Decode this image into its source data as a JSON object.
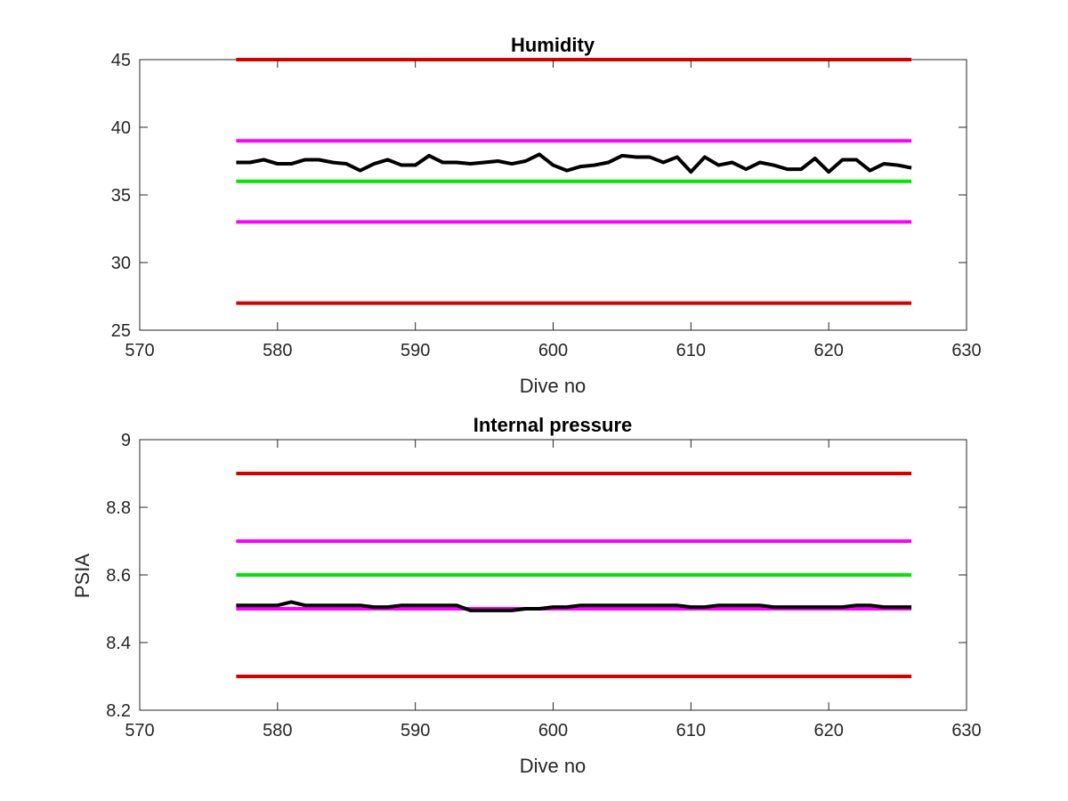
{
  "chart_data": [
    {
      "type": "line",
      "title": "Humidity",
      "xlabel": "Dive no",
      "ylabel": "",
      "xlim": [
        570,
        630
      ],
      "ylim": [
        25,
        45
      ],
      "xticks": [
        570,
        580,
        590,
        600,
        610,
        620,
        630
      ],
      "yticks": [
        25,
        30,
        35,
        40,
        45
      ],
      "grid": false,
      "series": [
        {
          "color": "#d40000",
          "x": [
            577,
            626
          ],
          "y": [
            45,
            45
          ]
        },
        {
          "color": "#ff00ff",
          "x": [
            577,
            626
          ],
          "y": [
            39,
            39
          ]
        },
        {
          "color": "#00e600",
          "x": [
            577,
            626
          ],
          "y": [
            36,
            36
          ]
        },
        {
          "color": "#ff00ff",
          "x": [
            577,
            626
          ],
          "y": [
            33,
            33
          ]
        },
        {
          "color": "#d40000",
          "x": [
            577,
            626
          ],
          "y": [
            27,
            27
          ]
        },
        {
          "color": "#000000",
          "x": [
            577,
            578,
            579,
            580,
            581,
            582,
            583,
            584,
            585,
            586,
            587,
            588,
            589,
            590,
            591,
            592,
            593,
            594,
            595,
            596,
            597,
            598,
            599,
            600,
            601,
            602,
            603,
            604,
            605,
            606,
            607,
            608,
            609,
            610,
            611,
            612,
            613,
            614,
            615,
            616,
            617,
            618,
            619,
            620,
            621,
            622,
            623,
            624,
            625,
            626
          ],
          "y": [
            37.4,
            37.4,
            37.6,
            37.3,
            37.3,
            37.6,
            37.6,
            37.4,
            37.3,
            36.8,
            37.3,
            37.6,
            37.2,
            37.2,
            37.9,
            37.4,
            37.4,
            37.3,
            37.4,
            37.5,
            37.3,
            37.5,
            38.0,
            37.2,
            36.8,
            37.1,
            37.2,
            37.4,
            37.9,
            37.8,
            37.8,
            37.4,
            37.8,
            36.7,
            37.8,
            37.2,
            37.4,
            36.9,
            37.4,
            37.2,
            36.9,
            36.9,
            37.7,
            36.7,
            37.6,
            37.6,
            36.8,
            37.3,
            37.2,
            37.0
          ]
        }
      ]
    },
    {
      "type": "line",
      "title": "Internal pressure",
      "xlabel": "Dive no",
      "ylabel": "PSIA",
      "xlim": [
        570,
        630
      ],
      "ylim": [
        8.2,
        9
      ],
      "xticks": [
        570,
        580,
        590,
        600,
        610,
        620,
        630
      ],
      "yticks": [
        8.2,
        8.4,
        8.6,
        8.8,
        9
      ],
      "grid": false,
      "series": [
        {
          "color": "#d40000",
          "x": [
            577,
            626
          ],
          "y": [
            8.9,
            8.9
          ]
        },
        {
          "color": "#ff00ff",
          "x": [
            577,
            626
          ],
          "y": [
            8.7,
            8.7
          ]
        },
        {
          "color": "#00e600",
          "x": [
            577,
            626
          ],
          "y": [
            8.6,
            8.6
          ]
        },
        {
          "color": "#ff00ff",
          "x": [
            577,
            626
          ],
          "y": [
            8.5,
            8.5
          ]
        },
        {
          "color": "#d40000",
          "x": [
            577,
            626
          ],
          "y": [
            8.3,
            8.3
          ]
        },
        {
          "color": "#000000",
          "x": [
            577,
            578,
            579,
            580,
            581,
            582,
            583,
            584,
            585,
            586,
            587,
            588,
            589,
            590,
            591,
            592,
            593,
            594,
            595,
            596,
            597,
            598,
            599,
            600,
            601,
            602,
            603,
            604,
            605,
            606,
            607,
            608,
            609,
            610,
            611,
            612,
            613,
            614,
            615,
            616,
            617,
            618,
            619,
            620,
            621,
            622,
            623,
            624,
            625,
            626
          ],
          "y": [
            8.51,
            8.51,
            8.51,
            8.51,
            8.52,
            8.51,
            8.51,
            8.51,
            8.51,
            8.51,
            8.505,
            8.505,
            8.51,
            8.51,
            8.51,
            8.51,
            8.51,
            8.495,
            8.495,
            8.495,
            8.495,
            8.5,
            8.5,
            8.505,
            8.505,
            8.51,
            8.51,
            8.51,
            8.51,
            8.51,
            8.51,
            8.51,
            8.51,
            8.505,
            8.505,
            8.51,
            8.51,
            8.51,
            8.51,
            8.505,
            8.505,
            8.505,
            8.505,
            8.505,
            8.505,
            8.51,
            8.51,
            8.505,
            8.505,
            8.505
          ]
        }
      ]
    }
  ]
}
